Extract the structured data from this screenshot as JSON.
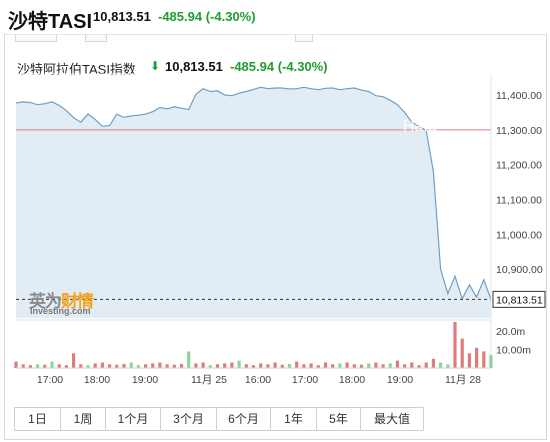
{
  "header": {
    "title": "沙特TASI",
    "price": "10,813.51",
    "change": "-485.94",
    "change_pct": "(-4.30%)"
  },
  "chart_header": {
    "name": "沙特阿拉伯TASI指数",
    "arrow": "⬇",
    "price": "10,813.51",
    "change": "-485.94",
    "change_pct": "(-4.30%)"
  },
  "logo": {
    "cn_part1": "英为",
    "cn_part2": "财情",
    "en": "Investing.com"
  },
  "watermark": "Hata",
  "periods": [
    "1日",
    "1周",
    "1个月",
    "3个月",
    "6个月",
    "1年",
    "5年",
    "最大值"
  ],
  "colors": {
    "up": "#1f9d2e",
    "line": "#6f9fc4",
    "area": "#e2ecf4",
    "prev_close": "#e07b7b",
    "volume": "#e07b7b"
  },
  "chart_data": {
    "type": "area",
    "x_labels": [
      "17:00",
      "18:00",
      "19:00",
      "11月 25",
      "16:00",
      "17:00",
      "18:00",
      "19:00",
      "11月 28"
    ],
    "y_ticks": [
      "11,400.00",
      "11,300.00",
      "11,200.00",
      "11,100.00",
      "11,000.00",
      "10,900.00"
    ],
    "ylim": [
      10760,
      11420
    ],
    "previous_close": 11300,
    "last_value": 10813.51,
    "last_label": "10,813.51",
    "values": [
      11377,
      11380,
      11378,
      11372,
      11375,
      11380,
      11370,
      11355,
      11335,
      11322,
      11345,
      11330,
      11310,
      11312,
      11345,
      11336,
      11340,
      11342,
      11345,
      11352,
      11364,
      11360,
      11366,
      11362,
      11358,
      11402,
      11418,
      11410,
      11412,
      11400,
      11398,
      11405,
      11410,
      11416,
      11422,
      11418,
      11420,
      11420,
      11417,
      11418,
      11422,
      11418,
      11415,
      11419,
      11420,
      11415,
      11418,
      11420,
      11414,
      11410,
      11398,
      11395,
      11385,
      11372,
      11350,
      11322,
      11310,
      11298,
      11180,
      10900,
      10830,
      10880,
      10815,
      10855,
      10820,
      10870,
      10813.51
    ],
    "volume_ticks": [
      "20.0m",
      "10.00m"
    ],
    "volume_max": 25,
    "volumes": [
      3.5,
      2,
      1.5,
      2,
      1.8,
      3.5,
      2,
      1.5,
      8,
      2,
      1.5,
      2.5,
      3,
      2,
      1.8,
      2.2,
      3,
      1.5,
      2,
      2.5,
      3,
      2,
      1.8,
      2.2,
      9,
      2.5,
      3,
      1.5,
      2,
      2.5,
      3,
      4,
      2,
      1.5,
      2.5,
      2,
      3,
      1.8,
      2.2,
      3.5,
      2,
      2.5,
      1.5,
      3,
      2,
      2.5,
      3,
      2,
      1.8,
      2.5,
      3,
      2,
      2.5,
      4,
      2,
      3,
      1.5,
      3,
      5,
      3,
      2,
      25,
      16,
      8,
      11,
      9,
      7
    ]
  }
}
